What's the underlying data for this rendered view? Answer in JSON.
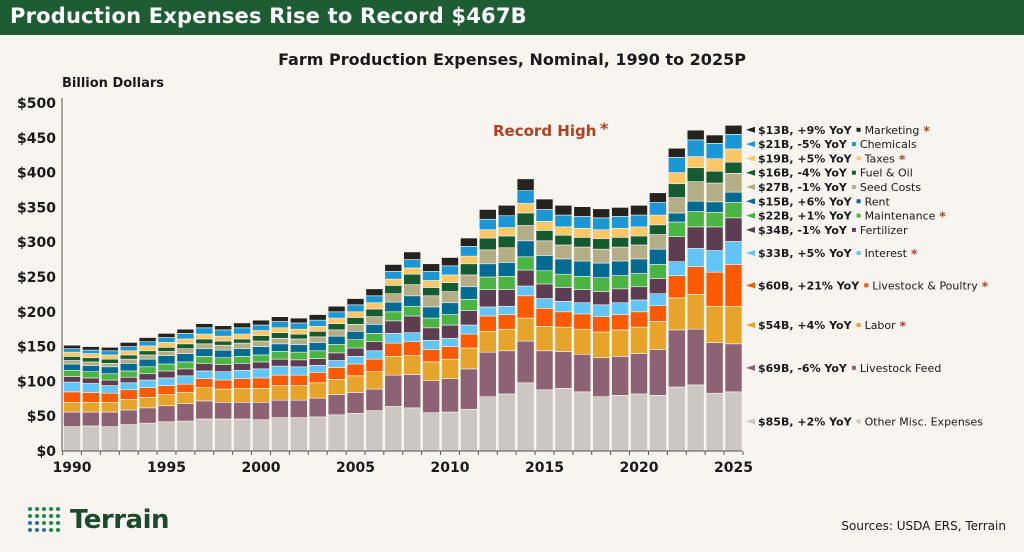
{
  "header": {
    "title": "Production Expenses Rise to Record $467B"
  },
  "footer": {
    "logo_text": "Terrain",
    "sources": "Sources: USDA ERS, Terrain"
  },
  "chart_data": {
    "type": "bar",
    "stacked": true,
    "title": "Farm Production Expenses, Nominal, 1990 to 2025P",
    "ylabel": "Billion Dollars",
    "xlabel": "",
    "ylim": [
      0,
      500
    ],
    "yticks": [
      0,
      50,
      100,
      150,
      200,
      250,
      300,
      350,
      400,
      450,
      500
    ],
    "ytick_labels": [
      "$0",
      "$50",
      "$100",
      "$150",
      "$200",
      "$250",
      "$300",
      "$350",
      "$400",
      "$450",
      "$500"
    ],
    "xtick_labels": [
      "1990",
      "1995",
      "2000",
      "2005",
      "2010",
      "2015",
      "2020",
      "2025"
    ],
    "grid": false,
    "annotation": {
      "text": "Record High",
      "star": "*",
      "color": "#b5401f"
    },
    "categories": [
      1990,
      1991,
      1992,
      1993,
      1994,
      1995,
      1996,
      1997,
      1998,
      1999,
      2000,
      2001,
      2002,
      2003,
      2004,
      2005,
      2006,
      2007,
      2008,
      2009,
      2010,
      2011,
      2012,
      2013,
      2014,
      2015,
      2016,
      2017,
      2018,
      2019,
      2020,
      2021,
      2022,
      2023,
      2024,
      2025
    ],
    "series": [
      {
        "name": "Other Misc. Expenses",
        "label": "$85B, +2% YoY",
        "star": false,
        "color": "#ccc7c2",
        "values": [
          35,
          36,
          35,
          38,
          40,
          42,
          43,
          46,
          46,
          46,
          45,
          48,
          48,
          49,
          52,
          54,
          58,
          64,
          62,
          55,
          56,
          60,
          78,
          82,
          98,
          88,
          90,
          85,
          78,
          80,
          82,
          80,
          92,
          95,
          83,
          85
        ]
      },
      {
        "name": "Livestock Feed",
        "label": "$69B, -6% YoY",
        "star": false,
        "color": "#8d6275",
        "values": [
          21,
          20,
          21,
          21,
          22,
          23,
          25,
          26,
          24,
          24,
          25,
          25,
          25,
          27,
          29,
          30,
          31,
          45,
          48,
          46,
          48,
          58,
          64,
          62,
          60,
          56,
          53,
          54,
          56,
          56,
          58,
          66,
          82,
          80,
          73,
          69
        ]
      },
      {
        "name": "Labor",
        "label": "$54B, +4% YoY",
        "star": true,
        "color": "#e6a52a",
        "values": [
          14,
          14,
          14,
          15,
          15,
          16,
          16,
          19,
          19,
          20,
          20,
          21,
          21,
          22,
          22,
          24,
          25,
          27,
          27,
          27,
          28,
          30,
          30,
          31,
          33,
          35,
          35,
          36,
          37,
          38,
          38,
          40,
          46,
          50,
          52,
          54
        ]
      },
      {
        "name": "Livestock & Poultry",
        "label": "$60B, +21% YoY",
        "star": true,
        "color": "#fc5a00",
        "values": [
          15,
          14,
          13,
          14,
          14,
          13,
          12,
          13,
          13,
          14,
          15,
          15,
          15,
          15,
          17,
          17,
          18,
          19,
          20,
          18,
          18,
          20,
          22,
          21,
          32,
          26,
          22,
          22,
          22,
          22,
          22,
          23,
          32,
          40,
          49,
          60
        ]
      },
      {
        "name": "Interest",
        "label": "$33B, +5% YoY",
        "star": true,
        "color": "#62c5f7",
        "values": [
          14,
          13,
          11,
          10,
          11,
          11,
          12,
          11,
          12,
          12,
          13,
          13,
          12,
          10,
          10,
          11,
          12,
          14,
          13,
          13,
          12,
          13,
          13,
          12,
          14,
          14,
          15,
          16,
          17,
          17,
          17,
          17,
          20,
          26,
          31,
          33
        ]
      },
      {
        "name": "Fertilizer",
        "label": "$34B, -1% YoY",
        "star": false,
        "color": "#5c3d52",
        "values": [
          8,
          8,
          8,
          8,
          9,
          10,
          10,
          11,
          10,
          10,
          10,
          10,
          10,
          10,
          11,
          12,
          13,
          18,
          24,
          18,
          19,
          21,
          25,
          24,
          23,
          21,
          20,
          19,
          19,
          20,
          19,
          22,
          36,
          31,
          34,
          34
        ]
      },
      {
        "name": "Maintenance",
        "label": "$22B, +1% YoY",
        "star": true,
        "color": "#4bb543",
        "values": [
          9,
          9,
          9,
          9,
          10,
          10,
          10,
          10,
          10,
          10,
          10,
          11,
          11,
          11,
          12,
          12,
          12,
          13,
          14,
          14,
          15,
          16,
          18,
          19,
          19,
          19,
          19,
          19,
          20,
          19,
          19,
          20,
          21,
          22,
          21,
          22
        ]
      },
      {
        "name": "Rent",
        "label": "$15B, +6% YoY",
        "star": false,
        "color": "#036a92",
        "values": [
          9,
          9,
          10,
          11,
          11,
          12,
          12,
          11,
          11,
          11,
          12,
          11,
          11,
          12,
          12,
          12,
          13,
          14,
          15,
          16,
          17,
          18,
          19,
          20,
          23,
          22,
          22,
          22,
          21,
          21,
          21,
          22,
          13,
          15,
          15,
          15
        ]
      },
      {
        "name": "Seed Costs",
        "label": "$27B, -1% YoY",
        "star": false,
        "color": "#b3ae86",
        "values": [
          5,
          5,
          5,
          6,
          6,
          6,
          7,
          7,
          7,
          8,
          8,
          8,
          8,
          8,
          9,
          10,
          11,
          12,
          16,
          16,
          16,
          17,
          20,
          21,
          22,
          21,
          20,
          20,
          20,
          20,
          20,
          21,
          22,
          28,
          27,
          27
        ]
      },
      {
        "name": "Fuel & Oil",
        "label": "$16B, -4% YoY",
        "star": false,
        "color": "#165b30",
        "values": [
          6,
          6,
          6,
          6,
          6,
          6,
          7,
          7,
          6,
          6,
          8,
          8,
          7,
          8,
          9,
          10,
          11,
          12,
          15,
          12,
          13,
          16,
          17,
          17,
          18,
          15,
          14,
          14,
          15,
          14,
          13,
          14,
          20,
          20,
          17,
          16
        ]
      },
      {
        "name": "Taxes",
        "label": "$19B, +5% YoY",
        "star": true,
        "color": "#fdc765",
        "values": [
          6,
          6,
          6,
          6,
          7,
          7,
          7,
          7,
          7,
          7,
          7,
          7,
          7,
          7,
          8,
          8,
          9,
          9,
          9,
          10,
          11,
          11,
          12,
          12,
          14,
          13,
          12,
          13,
          13,
          13,
          13,
          14,
          16,
          16,
          18,
          19
        ]
      },
      {
        "name": "Chemicals",
        "label": "$21B, -5% YoY",
        "star": false,
        "color": "#1a97d4",
        "values": [
          5,
          5,
          6,
          6,
          6,
          7,
          8,
          9,
          9,
          9,
          8,
          9,
          9,
          9,
          9,
          10,
          10,
          11,
          12,
          13,
          13,
          14,
          15,
          17,
          18,
          17,
          17,
          17,
          17,
          17,
          17,
          18,
          22,
          24,
          22,
          21
        ]
      },
      {
        "name": "Marketing",
        "label": "$13B, +9% YoY",
        "star": true,
        "color": "#24231e",
        "values": [
          5,
          5,
          5,
          6,
          6,
          6,
          6,
          6,
          6,
          7,
          7,
          7,
          7,
          8,
          8,
          9,
          10,
          10,
          11,
          11,
          12,
          12,
          14,
          15,
          17,
          15,
          14,
          14,
          13,
          13,
          14,
          14,
          13,
          14,
          12,
          13
        ]
      }
    ],
    "legend_placement": "right"
  }
}
